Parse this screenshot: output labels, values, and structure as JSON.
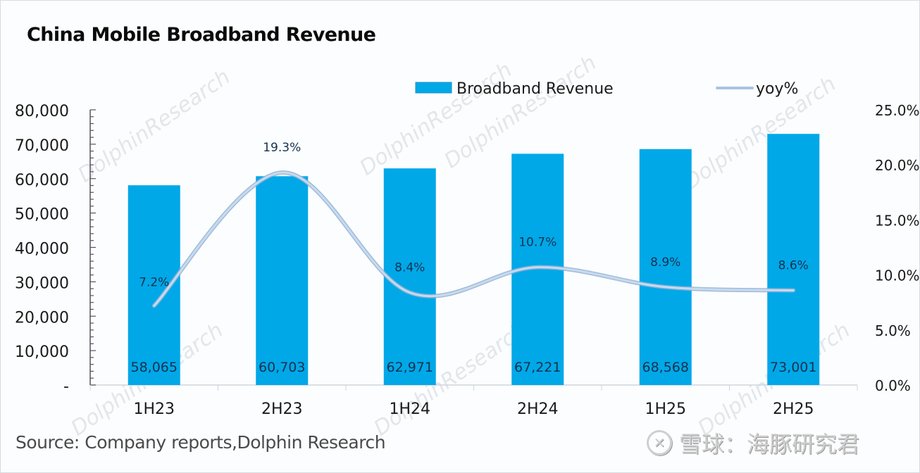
{
  "chart_data": {
    "type": "bar",
    "title": "China Mobile Broadband Revenue",
    "categories": [
      "1H23",
      "2H23",
      "1H24",
      "2H24",
      "1H25",
      "2H25"
    ],
    "series": [
      {
        "name": "Broadband Revenue",
        "type": "bar",
        "axis": "left",
        "color": "#00a8e8",
        "values": [
          58065,
          60703,
          62971,
          67221,
          68568,
          73001
        ],
        "labels": [
          "58,065",
          "60,703",
          "62,971",
          "67,221",
          "68,568",
          "73,001"
        ]
      },
      {
        "name": "yoy%",
        "type": "line",
        "smooth": true,
        "axis": "right",
        "color": "#a9c4e0",
        "values": [
          7.2,
          19.3,
          8.4,
          10.7,
          8.9,
          8.6
        ],
        "labels": [
          "7.2%",
          "19.3%",
          "8.4%",
          "10.7%",
          "8.9%",
          "8.6%"
        ]
      }
    ],
    "xlabel": "",
    "ylabel": "",
    "ylim": [
      0,
      80000
    ],
    "yticks": [
      0,
      10000,
      20000,
      30000,
      40000,
      50000,
      60000,
      70000,
      80000
    ],
    "ytick_labels": [
      "-",
      "10,000",
      "20,000",
      "30,000",
      "40,000",
      "50,000",
      "60,000",
      "70,000",
      "80,000"
    ],
    "y2lim": [
      0,
      25
    ],
    "y2ticks": [
      0,
      5,
      10,
      15,
      20,
      25
    ],
    "y2tick_labels": [
      "0.0%",
      "5.0%",
      "10.0%",
      "15.0%",
      "20.0%",
      "25.0%"
    ],
    "grid": false,
    "legend": "top-right"
  },
  "footer": {
    "source": "Source: Company reports,Dolphin Research",
    "platform_mark": "雪球：海豚研究君",
    "platform_logo": "snowball-logo-icon"
  },
  "watermark": "DolphinResearch"
}
